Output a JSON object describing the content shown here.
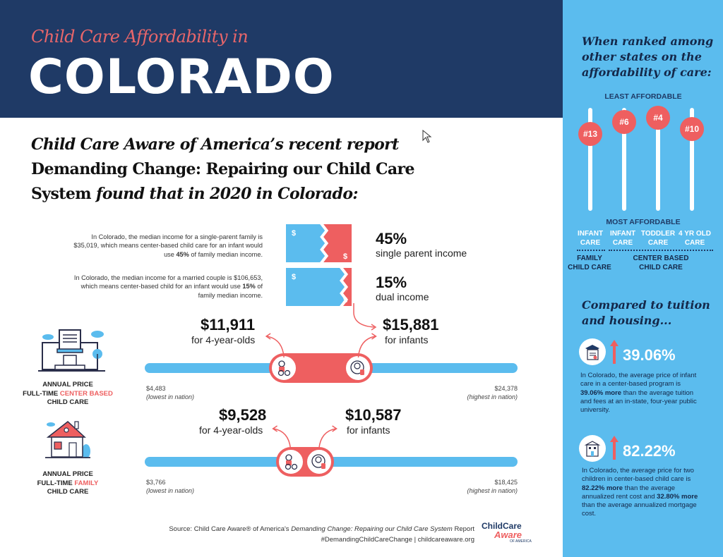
{
  "header": {
    "subtitle": "Child Care Affordability in",
    "title": "COLORADO"
  },
  "intro": {
    "line1_italic": "Child Care Aware of America’s recent report",
    "line2": "Demanding Change: Repairing our Child Care",
    "line3_regular": "System",
    "line3_italic": "found that in 2020 in Colorado:"
  },
  "income": [
    {
      "text_before": "In Colorado, the median income for a single-parent family is $35,019, which means center-based child care for an infant would use ",
      "bold": "45%",
      "text_after": " of family median income.",
      "percent": "45%",
      "label": "single parent income",
      "share": 0.45
    },
    {
      "text_before": "In Colorado, the median income for a married couple is $106,653, which means center-based child for an infant would use ",
      "bold": "15%",
      "text_after": " of family median income.",
      "percent": "15%",
      "label": "dual income",
      "share": 0.15
    }
  ],
  "center_based": {
    "label_line1": "ANNUAL PRICE",
    "label_line2_prefix": "FULL-TIME ",
    "label_line2_accent": "CENTER BASED",
    "label_line3": "CHILD CARE",
    "four_year_price": "$11,911",
    "four_year_label": "for 4-year-olds",
    "infant_price": "$15,881",
    "infant_label": "for infants",
    "min": "$4,483",
    "min_label": "(lowest in nation)",
    "max": "$24,378",
    "max_label": "(highest in nation)",
    "min_value": 4483,
    "max_value": 24378,
    "four_year_value": 11911,
    "infant_value": 15881
  },
  "family": {
    "label_line1": "ANNUAL PRICE",
    "label_line2_prefix": "FULL-TIME ",
    "label_line2_accent": "FAMILY",
    "label_line3": "CHILD CARE",
    "four_year_price": "$9,528",
    "four_year_label": "for 4-year-olds",
    "infant_price": "$10,587",
    "infant_label": "for infants",
    "min": "$3,766",
    "min_label": "(lowest in nation)",
    "max": "$18,425",
    "max_label": "(highest in nation)",
    "min_value": 3766,
    "max_value": 18425,
    "four_year_value": 9528,
    "infant_value": 10587
  },
  "source": {
    "prefix": "Source: Child Care Aware® of America's ",
    "italic": "Demanding Change: Repairing our Child Care System",
    "suffix": " Report",
    "line2": "#DemandingChildCareChange | childcareaware.org",
    "logo_line1": "ChildCare",
    "logo_line2": "Aware",
    "logo_line3": "OF AMERICA"
  },
  "sidebar": {
    "heading": "When ranked among other states on the affordability of care:",
    "least": "LEAST AFFORDABLE",
    "most": "MOST AFFORDABLE",
    "ranks": [
      {
        "rank": "#13",
        "cat1": "INFANT",
        "cat2": "CARE"
      },
      {
        "rank": "#6",
        "cat1": "INFANT",
        "cat2": "CARE"
      },
      {
        "rank": "#4",
        "cat1": "TODDLER",
        "cat2": "CARE"
      },
      {
        "rank": "#10",
        "cat1": "4 YR OLD",
        "cat2": "CARE"
      }
    ],
    "group1": "FAMILY CHILD CARE",
    "group2": "CENTER BASED CHILD CARE",
    "compare_heading": "Compared to tuition and housing...",
    "stat1": {
      "value": "39.06%",
      "text_before": "In Colorado, the average price of infant care in a center-based program is ",
      "bold": "39.06% more",
      "text_after": " than the average tuition and fees at an in-state, four-year public university."
    },
    "stat2": {
      "value": "82.22%",
      "text_before": "In Colorado, the average price for two children in center-based child care is ",
      "bold1": "82.22% more",
      "text_mid": " than the average annualized rent cost and ",
      "bold2": "32.80% more",
      "text_after": " than the average annualized mortgage cost."
    }
  },
  "colors": {
    "navy": "#1f3a66",
    "coral": "#ee5f60",
    "sky": "#5bbcee"
  }
}
